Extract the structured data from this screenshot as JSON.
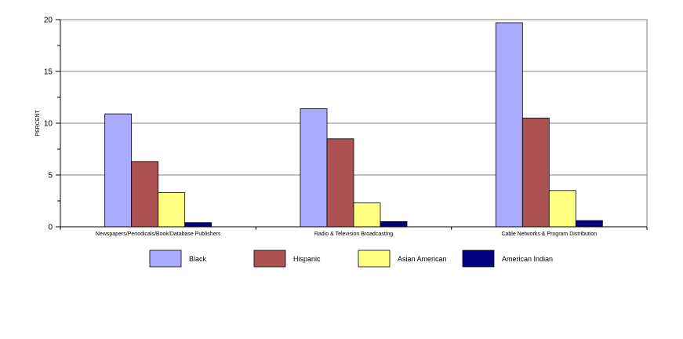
{
  "chart_data": {
    "type": "bar",
    "title": "",
    "xlabel": "",
    "ylabel": "PERCENT",
    "ylim": [
      0,
      20
    ],
    "yticks": [
      "0",
      "5",
      "10",
      "15",
      "20"
    ],
    "grid": true,
    "legend_position": "bottom",
    "categories": [
      "Newspapers/Periodicals/Book/Database Publishers",
      "Radio & Television Broadcasting",
      "Cable Networks & Program Distribution"
    ],
    "series": [
      {
        "name": "Black",
        "color": "#aaaaff",
        "values": [
          10.9,
          11.4,
          19.7
        ]
      },
      {
        "name": "Hispanic",
        "color": "#ad5252",
        "values": [
          6.3,
          8.5,
          10.5
        ]
      },
      {
        "name": "Asian American",
        "color": "#ffff80",
        "values": [
          3.3,
          2.3,
          3.5
        ]
      },
      {
        "name": "American Indian",
        "color": "#000080",
        "values": [
          0.4,
          0.5,
          0.6
        ]
      }
    ]
  }
}
